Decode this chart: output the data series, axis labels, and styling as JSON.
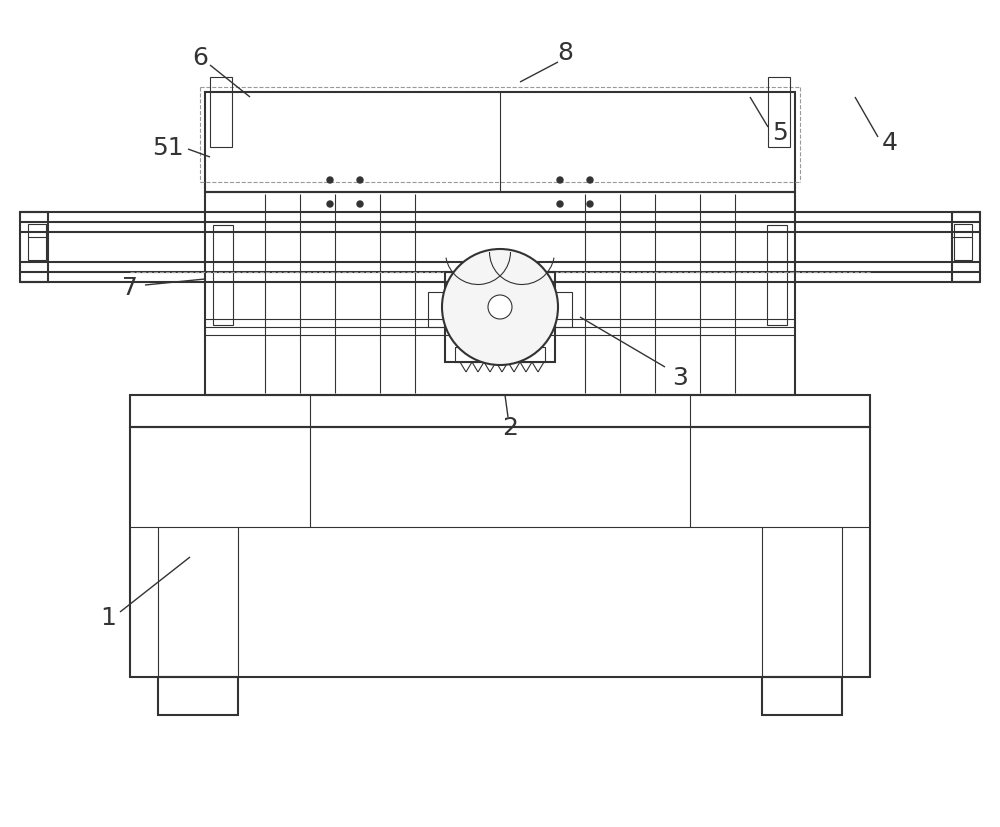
{
  "bg_color": "#ffffff",
  "line_color": "#333333",
  "dashed_color": "#999999",
  "label_color": "#333333",
  "fig_width": 10.0,
  "fig_height": 8.28,
  "lw_main": 1.5,
  "lw_thin": 0.8,
  "lw_label": 1.0
}
